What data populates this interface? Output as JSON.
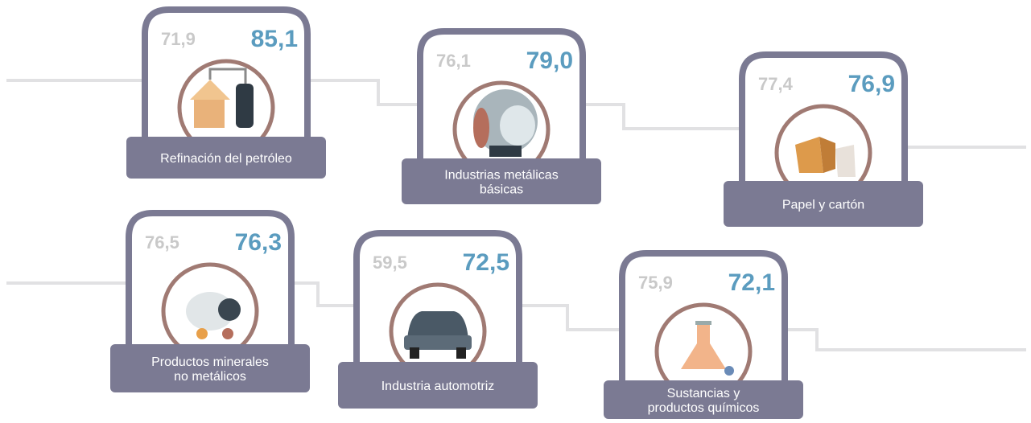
{
  "cards": [
    {
      "before": "71,9",
      "after": "85,1",
      "label": [
        "Refinación del petróleo"
      ]
    },
    {
      "before": "76,1",
      "after": "79,0",
      "label": [
        "Industrias metálicas",
        "básicas"
      ]
    },
    {
      "before": "77,4",
      "after": "76,9",
      "label": [
        "Papel y cartón"
      ]
    },
    {
      "before": "76,5",
      "after": "76,3",
      "label": [
        "Productos minerales",
        "no metálicos"
      ]
    },
    {
      "before": "59,5",
      "after": "72,5",
      "label": [
        "Industria automotriz"
      ]
    },
    {
      "before": "75,9",
      "after": "72,1",
      "label": [
        "Sustancias y",
        "productos químicos"
      ]
    }
  ]
}
